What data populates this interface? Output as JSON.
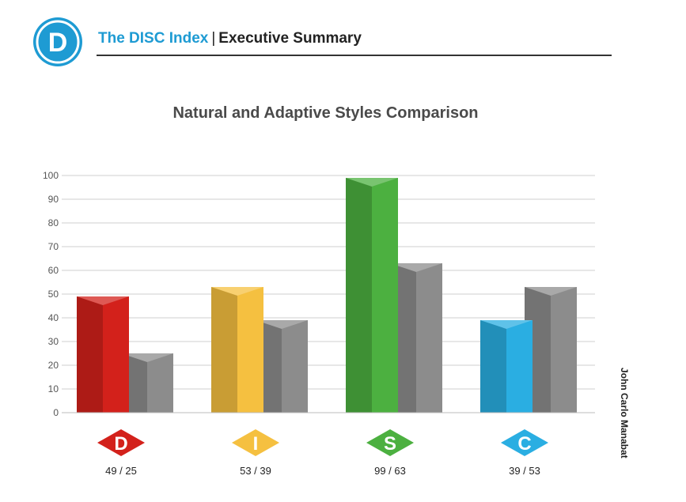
{
  "header": {
    "logo_letter": "D",
    "brand": "The DISC Index",
    "separator": "|",
    "section": "Executive Summary"
  },
  "author": "John Carlo Manabat",
  "colors": {
    "brand": "#1e9bd3",
    "natural_gray": "#8c8c8c",
    "D": "#d3211b",
    "I": "#f5c040",
    "S": "#4cb040",
    "C": "#2aaee2"
  },
  "chart_data": {
    "type": "bar",
    "title": "Natural and Adaptive Styles Comparison",
    "categories": [
      "D",
      "I",
      "S",
      "C"
    ],
    "category_labels": [
      "49 / 25",
      "53 / 39",
      "99 / 63",
      "39 / 53"
    ],
    "series": [
      {
        "values": [
          49,
          53,
          99,
          39
        ]
      },
      {
        "values": [
          25,
          39,
          63,
          53
        ]
      }
    ],
    "ylim": [
      0,
      100
    ],
    "yticks": [
      0,
      10,
      20,
      30,
      40,
      50,
      60,
      70,
      80,
      90,
      100
    ],
    "grid": true,
    "xlabel": "",
    "ylabel": ""
  }
}
